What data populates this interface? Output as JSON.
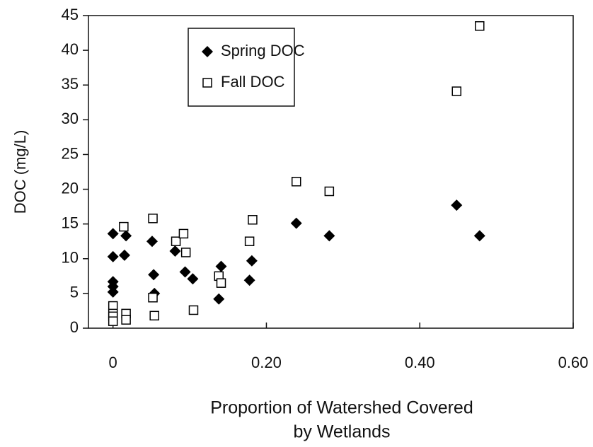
{
  "chart_data": {
    "type": "scatter",
    "y_label": "DOC (mg/L)",
    "x_label": [
      "Proportion of Watershed Covered",
      "by Wetlands"
    ],
    "xlim": [
      -0.032,
      0.6
    ],
    "ylim": [
      0,
      45
    ],
    "xticks": [
      0,
      {
        "value": 0.2,
        "label": "0.20"
      },
      {
        "value": 0.4,
        "label": "0.40"
      },
      {
        "value": 0.6,
        "label": "0.60"
      }
    ],
    "yticks": [
      0,
      5,
      10,
      15,
      20,
      25,
      30,
      35,
      40,
      45
    ],
    "legend": "upper left",
    "series": [
      {
        "name": "Spring DOC",
        "color": "#000000",
        "marker": "diamond",
        "x": [
          0,
          0,
          0,
          0,
          0,
          0.017,
          0.015,
          0.051,
          0.053,
          0.054,
          0.081,
          0.094,
          0.104,
          0.138,
          0.141,
          0.178,
          0.181,
          0.239,
          0.282,
          0.448,
          0.478
        ],
        "values": [
          13.6,
          10.3,
          6.7,
          6.0,
          5.2,
          13.3,
          10.5,
          12.5,
          7.7,
          5.0,
          11.1,
          8.1,
          7.1,
          4.2,
          8.9,
          6.9,
          9.7,
          15.1,
          13.3,
          17.7,
          13.3
        ]
      },
      {
        "name": "Fall DOC",
        "color": "#000000",
        "marker": "square",
        "x": [
          0,
          0,
          0,
          0,
          0.014,
          0.017,
          0.017,
          0.052,
          0.052,
          0.054,
          0.082,
          0.092,
          0.095,
          0.105,
          0.138,
          0.141,
          0.178,
          0.182,
          0.239,
          0.282,
          0.448,
          0.478
        ],
        "values": [
          3.2,
          2.1,
          1.7,
          1.0,
          14.6,
          2.1,
          1.2,
          15.8,
          4.4,
          1.8,
          12.5,
          13.6,
          10.9,
          2.6,
          7.5,
          6.5,
          12.5,
          15.6,
          21.1,
          19.7,
          34.1,
          43.5
        ]
      }
    ]
  }
}
